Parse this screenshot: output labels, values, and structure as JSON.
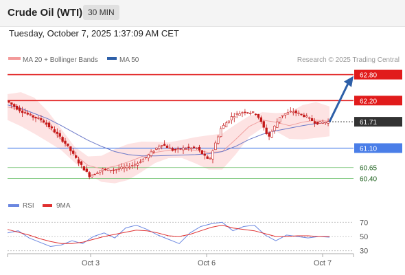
{
  "header": {
    "title": "Crude Oil (WTI)",
    "timeframe": "30 MIN",
    "timestamp": "Tuesday, October 7, 2025 1:37:09 AM CET"
  },
  "legend": {
    "ma20_label": "MA 20 + Bollinger Bands",
    "ma50_label": "MA 50",
    "copyright": "Research © 2025 Trading Central"
  },
  "rsi_legend": {
    "rsi_label": "RSI",
    "ma_label": "9MA"
  },
  "colors": {
    "resistance": "#e11b1b",
    "current": "#333333",
    "support": "#4a7ee8",
    "target_green": "#6abf69",
    "arrow": "#2d5fa8",
    "candle": "#c41818",
    "bollinger_fill": "#fde3e3",
    "ma20": "#f0a0a0",
    "ma50": "#6a78c8",
    "rsi": "#6b87e0",
    "rsi_ma": "#e03030"
  },
  "chart_data": [
    {
      "type": "line",
      "title": "Crude Oil (WTI)",
      "subtitle": "30 MIN",
      "x_tick_labels": [
        "Oct 3",
        "Oct 6",
        "Oct 7"
      ],
      "levels": [
        {
          "value": 62.8,
          "label": "62.80",
          "kind": "resistance"
        },
        {
          "value": 62.2,
          "label": "62.20",
          "kind": "resistance"
        },
        {
          "value": 61.71,
          "label": "61.71",
          "kind": "current"
        },
        {
          "value": 61.1,
          "label": "61.10",
          "kind": "support"
        },
        {
          "value": 60.65,
          "label": "60.65",
          "kind": "target"
        },
        {
          "value": 60.4,
          "label": "60.40",
          "kind": "target"
        }
      ],
      "series": [
        {
          "name": "MA 20 + Bollinger Bands",
          "values": [
            62.05,
            62.0,
            61.85,
            61.6,
            61.3,
            60.95,
            60.7,
            60.62,
            60.68,
            60.78,
            60.9,
            61.0,
            61.05,
            61.08,
            61.05,
            61.0,
            61.02,
            61.3,
            61.6,
            61.75,
            61.7,
            61.62,
            61.7,
            61.75,
            61.72
          ]
        },
        {
          "name": "MA 50",
          "values": [
            62.1,
            62.02,
            61.9,
            61.78,
            61.62,
            61.45,
            61.28,
            61.14,
            61.02,
            60.95,
            60.92,
            60.92,
            60.93,
            60.94,
            60.95,
            60.97,
            61.02,
            61.14,
            61.3,
            61.42,
            61.5,
            61.56,
            61.62,
            61.67,
            61.7
          ]
        }
      ],
      "price_path": [
        62.2,
        62.0,
        61.85,
        61.75,
        61.5,
        61.2,
        60.8,
        60.45,
        60.6,
        60.6,
        60.65,
        60.75,
        60.95,
        61.2,
        61.05,
        61.1,
        61.1,
        60.8,
        61.55,
        61.85,
        61.95,
        61.9,
        61.35,
        61.85,
        61.95,
        61.85,
        61.68,
        61.71
      ],
      "ylim": [
        60.2,
        63.0
      ]
    },
    {
      "type": "line",
      "y_tick_labels": [
        "70",
        "50",
        "30"
      ],
      "ylim": [
        20,
        80
      ],
      "series": [
        {
          "name": "RSI",
          "values": [
            55,
            58,
            48,
            42,
            36,
            38,
            44,
            40,
            50,
            55,
            48,
            62,
            66,
            60,
            52,
            46,
            40,
            55,
            64,
            68,
            70,
            58,
            64,
            66,
            52,
            44,
            52,
            50,
            48,
            50,
            49
          ]
        },
        {
          "name": "9MA",
          "values": [
            60,
            56,
            52,
            47,
            43,
            40,
            40,
            42,
            46,
            50,
            53,
            56,
            59,
            58,
            55,
            51,
            50,
            53,
            58,
            63,
            66,
            62,
            60,
            58,
            54,
            50,
            50,
            51,
            51,
            50,
            50
          ]
        }
      ]
    }
  ]
}
